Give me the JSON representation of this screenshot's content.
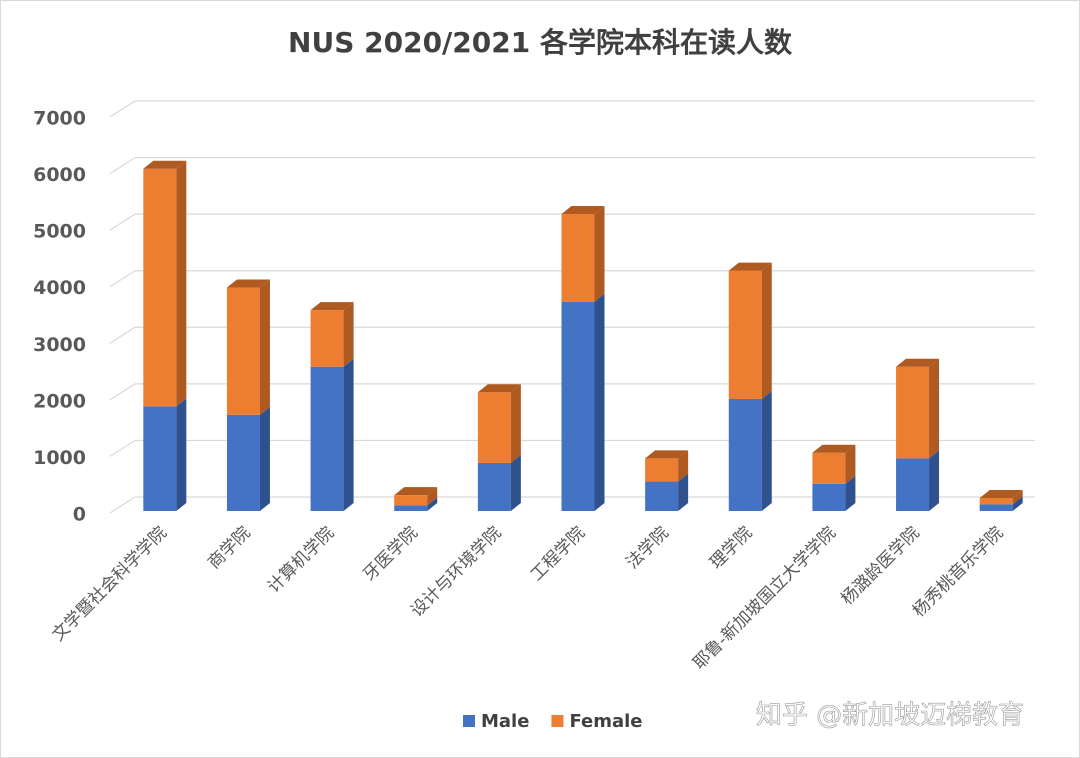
{
  "chart_data": {
    "type": "bar3d-stacked",
    "title": "NUS 2020/2021 各学院本科在读人数",
    "categories": [
      "文学暨社会科学学院",
      "商学院",
      "计算机学院",
      "牙医学院",
      "设计与环境学院",
      "工程学院",
      "法学院",
      "理学院",
      "耶鲁-新加坡国立大学学院",
      "杨潞龄医学院",
      "杨秀桃音乐学院"
    ],
    "series": [
      {
        "name": "Male",
        "color": "#4472c4",
        "side": "#2f528f",
        "values": [
          1850,
          1700,
          2550,
          100,
          850,
          3700,
          520,
          1980,
          480,
          930,
          120
        ]
      },
      {
        "name": "Female",
        "color": "#ed7d31",
        "side": "#ae5a21",
        "values": [
          4200,
          2250,
          1000,
          180,
          1250,
          1550,
          410,
          2270,
          550,
          1620,
          110
        ]
      }
    ],
    "ylim": [
      0,
      7000
    ],
    "yticks": [
      0,
      1000,
      2000,
      3000,
      4000,
      5000,
      6000,
      7000
    ],
    "grid": true
  },
  "watermark": "知乎 @新加坡迈梯教育"
}
